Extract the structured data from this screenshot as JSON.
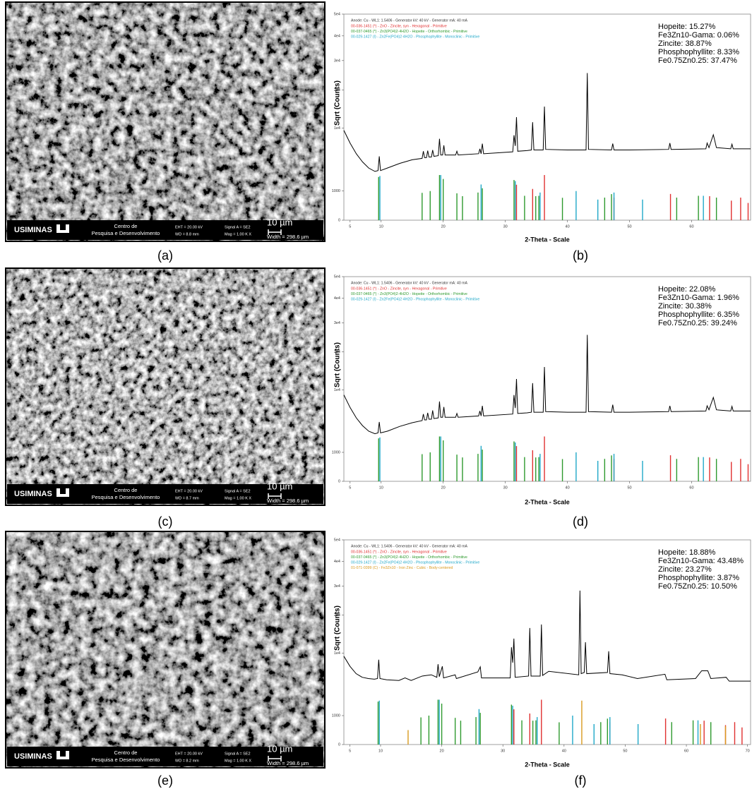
{
  "images": [
    {
      "label": "(a)",
      "logo": "USIMINAS",
      "center": [
        "Centro de",
        "Pesquisa e Desenvolvimento"
      ],
      "eht": "EHT = 20.00 kV",
      "wd": "WD = 8.8 mm",
      "signal": "Signal A = SE2",
      "mag": "Mag = 1.00 K X",
      "scale": "10 µm",
      "width": "Width = 298.6 µm"
    },
    {
      "label": "(c)",
      "logo": "USIMINAS",
      "center": [
        "Centro de",
        "Pesquisa e Desenvolvimento"
      ],
      "eht": "EHT = 20.00 kV",
      "wd": "WD = 8.7 mm",
      "signal": "Signal A = SE2",
      "mag": "Mag = 1.00 K X",
      "scale": "10 µm",
      "width": "Width = 298.6 µm"
    },
    {
      "label": "(e)",
      "logo": "USIMINAS",
      "center": [
        "Centro de",
        "Pesquisa e Desenvolvimento"
      ],
      "eht": "EHT = 20.00 kV",
      "wd": "WD = 8.2 mm",
      "signal": "Signal A = SE2",
      "mag": "Mag = 1.00 K X",
      "scale": "10 µm",
      "width": "Width = 298.6 µm"
    }
  ],
  "chart_data": [
    {
      "type": "line",
      "panel_label": "(b)",
      "xlabel": "2-Theta - Scale",
      "ylabel": "Sqrt (Counts)",
      "yscale": "sqrt",
      "header": "Anode: Cu - WL1: 1.5406 - Generator kV: 40 kV - Generator mA: 40 mA",
      "header_color": "#333333",
      "xlim": [
        4,
        69.5
      ],
      "xticks": [
        5,
        10,
        20,
        30,
        40,
        50,
        60
      ],
      "ylim": [
        0,
        50000
      ],
      "yticks": [
        0,
        1000,
        {
          "value": 10000,
          "label": "1e4"
        },
        {
          "value": 20000,
          "label": "2e4"
        },
        {
          "value": 30000,
          "label": "3e4"
        },
        {
          "value": 40000,
          "label": "4e4"
        },
        {
          "value": 50000,
          "label": "5e4"
        }
      ],
      "color": "#000000",
      "x": [
        4,
        5,
        6,
        7,
        8,
        9,
        9.5,
        9.7,
        9.9,
        11,
        13,
        15,
        16.6,
        16.8,
        17,
        17.3,
        17.5,
        17.7,
        18.1,
        18.3,
        18.5,
        19.2,
        19.4,
        19.6,
        19.9,
        20.1,
        20.3,
        22,
        22.2,
        22.4,
        25.7,
        25.9,
        26.1,
        26.3,
        26.5,
        31.2,
        31.4,
        31.6,
        31.8,
        32,
        33.5,
        34.2,
        34.4,
        34.6,
        36.1,
        36.3,
        36.5,
        40,
        43,
        43.2,
        43.4,
        47.1,
        47.3,
        47.5,
        50,
        56.3,
        56.5,
        56.7,
        62.3,
        62.5,
        62.8,
        63.5,
        64,
        66.3,
        66.5,
        66.7,
        69.5
      ],
      "values": [
        9500,
        7000,
        5200,
        4000,
        3200,
        2800,
        2900,
        4800,
        2900,
        3200,
        3800,
        4300,
        4500,
        5600,
        4600,
        4600,
        5700,
        4700,
        4700,
        5800,
        4800,
        4900,
        7800,
        5000,
        5000,
        6600,
        5000,
        5000,
        5600,
        5000,
        5200,
        6000,
        5200,
        6900,
        5200,
        5500,
        8500,
        6500,
        12500,
        5600,
        5700,
        5800,
        11300,
        5800,
        5800,
        15200,
        5900,
        5800,
        5800,
        25500,
        5900,
        5800,
        6900,
        5800,
        5800,
        5900,
        7000,
        5900,
        6000,
        7000,
        6200,
        8600,
        6200,
        6000,
        6800,
        6000,
        6000
      ],
      "series": [
        {
          "name": "00-036-1451 (*) - ZnO - Zincite, syn - Hexagonal - Primitive",
          "color": "#e03030",
          "x": [
            31.8,
            34.4,
            36.3,
            47.5,
            56.6,
            62.9,
            66.4,
            67.9,
            69.1
          ],
          "values": [
            1480,
            1150,
            2400,
            600,
            810,
            680,
            450,
            600,
            350
          ]
        },
        {
          "name": "00-037-0465 (*) - Zn3(PO4)2·4H2O - Hopeite - Orthorhombic - Primitive",
          "color": "#2e9a2e",
          "x": [
            9.6,
            16.6,
            17.9,
            19.4,
            20.0,
            22.2,
            23.1,
            25.6,
            26.3,
            31.4,
            33.1,
            34.9,
            35.4,
            39.2,
            46.0,
            47.1,
            57.6,
            61.1,
            64.0
          ],
          "values": [
            2200,
            880,
            1000,
            2400,
            2000,
            850,
            680,
            900,
            1200,
            1900,
            700,
            680,
            700,
            590,
            600,
            800,
            600,
            700,
            600
          ]
        },
        {
          "name": "00-029-1427 (I) - Zn2Fe(PO4)2·4H2O - Phosphophyllite - Monoclinic - Primitive",
          "color": "#20a8c8",
          "x": [
            9.8,
            19.6,
            26.1,
            31.6,
            35.6,
            41.4,
            44.9,
            47.5,
            52.1,
            61.9
          ],
          "values": [
            2300,
            2400,
            1500,
            1800,
            900,
            1000,
            500,
            900,
            500,
            700
          ]
        }
      ],
      "annotations": [
        "Hopeite: 15.27%",
        "Fe3Zn10-Gama: 0.06%",
        "Zincite: 38.87%",
        "Phosphophyllite: 8.33%",
        "Fe0.75Zn0.25: 37.47%"
      ]
    },
    {
      "type": "line",
      "panel_label": "(d)",
      "xlabel": "2-Theta - Scale",
      "ylabel": "Sqrt (Counts)",
      "yscale": "sqrt",
      "header": "Anode: Cu - WL1: 1.5406 - Generator kV: 40 kV - Generator mA: 40 mA",
      "header_color": "#333333",
      "xlim": [
        4,
        69.5
      ],
      "xticks": [
        5,
        10,
        20,
        30,
        40,
        50,
        60
      ],
      "ylim": [
        0,
        50000
      ],
      "yticks": [
        0,
        1000,
        {
          "value": 10000,
          "label": "1e4"
        },
        {
          "value": 20000,
          "label": "2e4"
        },
        {
          "value": 30000,
          "label": "3e4"
        },
        {
          "value": 40000,
          "label": "4e4"
        },
        {
          "value": 50000,
          "label": "5e4"
        }
      ],
      "color": "#000000",
      "x": [
        4,
        5,
        6,
        7,
        8,
        9,
        9.5,
        9.7,
        9.9,
        11,
        13,
        15,
        16.6,
        16.8,
        17,
        17.3,
        17.5,
        17.7,
        18.1,
        18.3,
        18.5,
        19.2,
        19.4,
        19.6,
        19.9,
        20.1,
        20.3,
        22,
        22.2,
        22.4,
        25.7,
        25.9,
        26.1,
        26.3,
        26.5,
        31.2,
        31.4,
        31.6,
        31.8,
        32,
        33.5,
        34.2,
        34.4,
        34.6,
        36.1,
        36.3,
        36.5,
        40,
        43,
        43.2,
        43.4,
        47.1,
        47.3,
        47.5,
        50,
        56.3,
        56.5,
        56.7,
        62.3,
        62.5,
        62.8,
        63.5,
        64,
        66.3,
        66.5,
        66.7,
        69.5
      ],
      "values": [
        8900,
        6500,
        4800,
        3700,
        3000,
        2700,
        2800,
        4200,
        2800,
        3000,
        3600,
        4100,
        4400,
        5400,
        4500,
        4500,
        5600,
        4600,
        4600,
        6000,
        4700,
        4800,
        7600,
        4900,
        4900,
        6600,
        4900,
        4900,
        5500,
        4900,
        5100,
        5900,
        5100,
        6800,
        5100,
        5400,
        8900,
        6400,
        12500,
        5500,
        5600,
        5700,
        11500,
        5700,
        5700,
        15600,
        5800,
        5700,
        5700,
        25600,
        5800,
        5700,
        7000,
        5700,
        5700,
        5800,
        6800,
        5800,
        5900,
        6800,
        6100,
        8400,
        6100,
        5900,
        6700,
        5900,
        5900
      ],
      "series": [
        {
          "name": "00-036-1451 (*) - ZnO - Zincite, syn - Hexagonal - Primitive",
          "color": "#e03030",
          "x": [
            31.8,
            34.4,
            36.3,
            47.5,
            56.6,
            62.9,
            66.4,
            67.9,
            69.1
          ],
          "values": [
            1480,
            1150,
            2400,
            600,
            810,
            680,
            450,
            600,
            350
          ]
        },
        {
          "name": "00-037-0465 (*) - Zn3(PO4)2·4H2O - Hopeite - Orthorhombic - Primitive",
          "color": "#2e9a2e",
          "x": [
            9.6,
            16.6,
            17.9,
            19.4,
            20.0,
            22.2,
            23.1,
            25.6,
            26.3,
            31.4,
            33.1,
            34.9,
            35.4,
            39.2,
            46.0,
            47.1,
            57.6,
            61.1,
            64.0
          ],
          "values": [
            2200,
            880,
            1000,
            2400,
            2000,
            850,
            680,
            900,
            1200,
            1900,
            700,
            680,
            700,
            590,
            600,
            800,
            600,
            700,
            600
          ]
        },
        {
          "name": "00-029-1427 (I) - Zn2Fe(PO4)2·4H2O - Phosphophyllite - Monoclinic - Primitive",
          "color": "#20a8c8",
          "x": [
            9.8,
            19.6,
            26.1,
            31.6,
            35.6,
            41.4,
            44.9,
            47.5,
            52.1,
            61.9
          ],
          "values": [
            2300,
            2400,
            1500,
            1800,
            900,
            1000,
            500,
            900,
            500,
            700
          ]
        }
      ],
      "annotations": [
        "Hopeite: 22.08%",
        "Fe3Zn10-Gama: 1.96%",
        "Zincite: 30.38%",
        "Phosphophyllite: 6.35%",
        "Fe0.75Zn0.25: 39.24%"
      ]
    },
    {
      "type": "line",
      "panel_label": "(f)",
      "xlabel": "2-Theta - Scale",
      "ylabel": "Sqrt (Counts)",
      "yscale": "sqrt",
      "header": "Anode: Cu - WL1: 1.5406 - Generator kV: 40 kV - Generator mA: 40 mA",
      "header_color": "#333333",
      "xlim": [
        4,
        70.5
      ],
      "xticks": [
        5,
        10,
        20,
        30,
        40,
        50,
        60,
        70
      ],
      "ylim": [
        0,
        50000
      ],
      "yticks": [
        0,
        1000,
        {
          "value": 10000,
          "label": "1e4"
        },
        {
          "value": 20000,
          "label": "2e4"
        },
        {
          "value": 30000,
          "label": "3e4"
        },
        {
          "value": 40000,
          "label": "4e4"
        },
        {
          "value": 50000,
          "label": "5e4"
        }
      ],
      "color": "#000000",
      "x": [
        4,
        5,
        6,
        7,
        8,
        9,
        9.5,
        9.7,
        9.9,
        11,
        13,
        14,
        15,
        16.8,
        17.5,
        18.3,
        19.2,
        19.4,
        19.6,
        20.1,
        20.3,
        22.2,
        22.4,
        25.9,
        26.3,
        26.5,
        31.2,
        31.4,
        31.6,
        31.8,
        32,
        34.2,
        34.4,
        34.6,
        36.1,
        36.3,
        36.5,
        37.5,
        42.4,
        42.6,
        42.8,
        43.3,
        43.5,
        43.7,
        47.1,
        47.3,
        47.5,
        49.5,
        52,
        56.5,
        56.8,
        61.5,
        62.5,
        63.5,
        64,
        66.5,
        67,
        70.5
      ],
      "values": [
        9300,
        7300,
        6000,
        5400,
        5200,
        5100,
        5200,
        8600,
        5200,
        5000,
        4900,
        5300,
        4900,
        5600,
        5700,
        5800,
        5400,
        7700,
        5500,
        7300,
        5300,
        5800,
        5200,
        6300,
        7200,
        5300,
        5300,
        11300,
        8000,
        13400,
        5400,
        5600,
        16200,
        5600,
        5600,
        17200,
        5700,
        6400,
        5800,
        28300,
        6000,
        6200,
        12500,
        6000,
        6200,
        10400,
        6000,
        5800,
        5200,
        5900,
        5000,
        5200,
        6500,
        6500,
        5200,
        5400,
        4800,
        4800
      ],
      "series": [
        {
          "name": "00-036-1451 (*) - ZnO - Zincite, syn - Hexagonal - Primitive",
          "color": "#e03030",
          "x": [
            31.8,
            34.4,
            36.3,
            47.5,
            56.6,
            62.9,
            66.4,
            67.9,
            69.1
          ],
          "values": [
            1480,
            1150,
            2400,
            600,
            810,
            680,
            450,
            600,
            350
          ]
        },
        {
          "name": "00-037-0465 (*) - Zn3(PO4)2·4H2O - Hopeite - Orthorhombic - Primitive",
          "color": "#2e9a2e",
          "x": [
            9.6,
            16.6,
            17.9,
            19.4,
            20.0,
            22.2,
            23.1,
            25.6,
            26.3,
            31.4,
            33.1,
            34.9,
            35.4,
            39.2,
            46.0,
            47.1,
            57.6,
            61.1,
            64.0
          ],
          "values": [
            2200,
            880,
            1000,
            2400,
            2000,
            850,
            680,
            900,
            1200,
            1900,
            700,
            680,
            700,
            590,
            600,
            800,
            600,
            700,
            600
          ]
        },
        {
          "name": "00-029-1427 (I) - Zn2Fe(PO4)2·4H2O - Phosphophyllite - Monoclinic - Primitive",
          "color": "#20a8c8",
          "x": [
            9.8,
            19.6,
            26.1,
            31.6,
            35.6,
            41.4,
            44.9,
            47.5,
            52.1,
            61.9
          ],
          "values": [
            2300,
            2400,
            1500,
            1800,
            900,
            1000,
            500,
            900,
            500,
            700
          ]
        },
        {
          "name": "01-071-0399 (C) - Fe3Zn10 - Iron Zinc - Cubic - Body-centered",
          "color": "#d99a1e",
          "x": [
            14.5,
            42.9,
            62.3,
            66.4
          ],
          "values": [
            250,
            2300,
            500,
            400
          ]
        }
      ],
      "annotations": [
        "Hopeite: 18.88%",
        "Fe3Zn10-Gama: 43.48%",
        "Zincite: 23.27%",
        "Phosphophyllite: 3.87%",
        "Fe0.75Zn0.25: 10.50%"
      ]
    }
  ]
}
